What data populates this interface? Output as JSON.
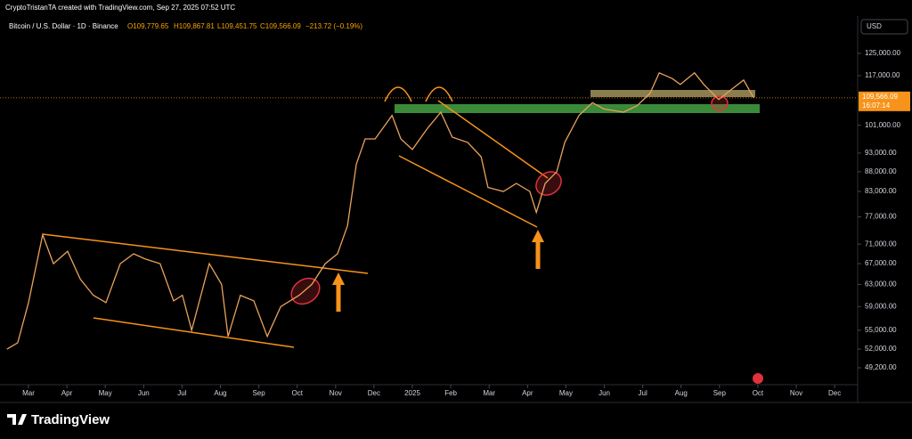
{
  "chart_data": {
    "type": "line",
    "watermark": "CryptoTristanTA created with TradingView.com, Sep 27, 2025 07:52 UTC",
    "title": "Bitcoin / U.S. Dollar · 1D · Binance",
    "ohlc": {
      "open": "O109,779.65",
      "high": "H109,867.81",
      "low": "L109,451.75",
      "close": "C109,566.09",
      "change": "−213.72 (−0.19%)"
    },
    "currency": "USD",
    "countdown": "16:07:14",
    "brand": "TradingView",
    "last_price": {
      "value": 109566.09,
      "label": "109,566.09"
    },
    "log_scale": true,
    "x": [
      -0.56,
      -0.28,
      0,
      0.37,
      0.65,
      1.02,
      1.35,
      1.69,
      2.02,
      2.39,
      2.74,
      3.02,
      3.43,
      3.78,
      4.01,
      4.25,
      4.71,
      5.03,
      5.2,
      5.52,
      5.87,
      6.22,
      6.57,
      7.05,
      7.38,
      7.73,
      8.05,
      8.31,
      8.54,
      8.77,
      9.03,
      9.47,
      9.7,
      10.0,
      10.39,
      10.74,
      11.04,
      11.44,
      11.79,
      11.97,
      12.37,
      12.71,
      13.06,
      13.23,
      13.46,
      13.76,
      13.97,
      14.34,
      14.69,
      14.99,
      15.5,
      15.85,
      16.19,
      16.43,
      16.77,
      16.98,
      17.35,
      17.59,
      17.98,
      18.28,
      18.63,
      18.89
    ],
    "series": [
      {
        "name": "BTCUSD",
        "color": "#e8a25c",
        "values": [
          52000,
          53000,
          59700,
          73000,
          67000,
          69500,
          64000,
          61000,
          59700,
          67000,
          69000,
          68000,
          67000,
          60000,
          61000,
          55000,
          67000,
          63000,
          54000,
          61000,
          60000,
          54000,
          59000,
          61000,
          63000,
          67000,
          69000,
          75000,
          90000,
          97000,
          97000,
          104000,
          97000,
          94000,
          100000,
          105000,
          97500,
          96000,
          92000,
          84000,
          83000,
          85000,
          83000,
          78000,
          85000,
          88000,
          96000,
          104000,
          108000,
          106000,
          105000,
          107000,
          111000,
          118000,
          116000,
          114000,
          118000,
          114000,
          109000,
          112000,
          115500,
          109566.09
        ]
      }
    ],
    "xlim": [
      -0.742,
      21.6
    ],
    "xticks": [
      {
        "value": 0,
        "label": "Mar"
      },
      {
        "value": 1,
        "label": "Apr"
      },
      {
        "value": 2,
        "label": "May"
      },
      {
        "value": 3,
        "label": "Jun"
      },
      {
        "value": 4,
        "label": "Jul"
      },
      {
        "value": 5,
        "label": "Aug"
      },
      {
        "value": 6,
        "label": "Sep"
      },
      {
        "value": 7,
        "label": "Oct"
      },
      {
        "value": 8,
        "label": "Nov"
      },
      {
        "value": 9,
        "label": "Dec"
      },
      {
        "value": 10,
        "label": "2025"
      },
      {
        "value": 11,
        "label": "Feb"
      },
      {
        "value": 12,
        "label": "Mar"
      },
      {
        "value": 13,
        "label": "Apr"
      },
      {
        "value": 14,
        "label": "May"
      },
      {
        "value": 15,
        "label": "Jun"
      },
      {
        "value": 16,
        "label": "Jul"
      },
      {
        "value": 17,
        "label": "Aug"
      },
      {
        "value": 18,
        "label": "Sep"
      },
      {
        "value": 19,
        "label": "Oct"
      },
      {
        "value": 20,
        "label": "Nov"
      },
      {
        "value": 21,
        "label": "Dec"
      }
    ],
    "ylim": [
      46800,
      138900
    ],
    "yticks": [
      {
        "value": 125000,
        "label": "125,000.00"
      },
      {
        "value": 117000,
        "label": "117,000.00"
      },
      {
        "value": 101000,
        "label": "101,000.00"
      },
      {
        "value": 93000,
        "label": "93,000.00"
      },
      {
        "value": 88000,
        "label": "88,000.00"
      },
      {
        "value": 83000,
        "label": "83,000.00"
      },
      {
        "value": 77000,
        "label": "77,000.00"
      },
      {
        "value": 71000,
        "label": "71,000.00"
      },
      {
        "value": 67000,
        "label": "67,000.00"
      },
      {
        "value": 63000,
        "label": "63,000.00"
      },
      {
        "value": 59000,
        "label": "59,000.00"
      },
      {
        "value": 55000,
        "label": "55,000.00"
      },
      {
        "value": 52000,
        "label": "52,000.00"
      },
      {
        "value": 49200,
        "label": "49,200.00"
      }
    ]
  }
}
